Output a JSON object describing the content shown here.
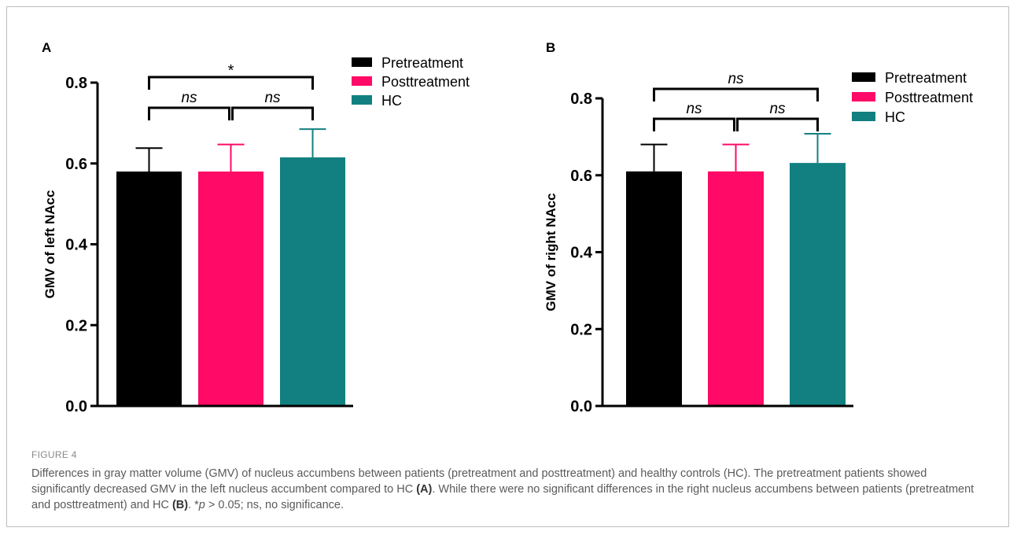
{
  "figure": {
    "label": "FIGURE 4",
    "caption": {
      "part1": "Differences in gray matter volume (GMV) of nucleus accumbens between patients (pretreatment and posttreatment) and healthy controls (HC). The pretreatment patients showed significantly decreased GMV in the left nucleus accumbent compared to HC ",
      "ref_a": "(A)",
      "part2": ". While there were no significant differences in the right nucleus accumbens between patients (pretreatment and posttreatment) and HC ",
      "ref_b": "(B)",
      "part3": ". *",
      "p_symbol": "p",
      "part4": " > 0.05; ns, no significance."
    }
  },
  "colors": {
    "Pretreatment": "#000000",
    "Posttreatment": "#ff0a66",
    "HC": "#128080"
  },
  "chart_data": [
    {
      "panel": "A",
      "type": "bar",
      "categories": [
        "Pretreatment",
        "Posttreatment",
        "HC"
      ],
      "values": [
        0.58,
        0.58,
        0.615
      ],
      "errors": [
        0.058,
        0.067,
        0.07
      ],
      "ylabel": "GMV of left NAcc",
      "ylim": [
        0,
        0.8
      ],
      "yticks": [
        0.0,
        0.2,
        0.4,
        0.6,
        0.8
      ],
      "ytick_labels": [
        "0.0",
        "0.2",
        "0.4",
        "0.6",
        "0.8"
      ],
      "legend": [
        "Pretreatment",
        "Posttreatment",
        "HC"
      ],
      "legend_position": "top-right",
      "significance": [
        {
          "from": 0,
          "to": 1,
          "label": "ns"
        },
        {
          "from": 1,
          "to": 2,
          "label": "ns"
        },
        {
          "from": 0,
          "to": 2,
          "label": "*"
        }
      ]
    },
    {
      "panel": "B",
      "type": "bar",
      "categories": [
        "Pretreatment",
        "Posttreatment",
        "HC"
      ],
      "values": [
        0.61,
        0.61,
        0.632
      ],
      "errors": [
        0.07,
        0.07,
        0.076
      ],
      "ylabel": "GMV of right NAcc",
      "ylim": [
        0,
        0.8
      ],
      "yticks": [
        0.0,
        0.2,
        0.4,
        0.6,
        0.8
      ],
      "ytick_labels": [
        "0.0",
        "0.2",
        "0.4",
        "0.6",
        "0.8"
      ],
      "legend": [
        "Pretreatment",
        "Posttreatment",
        "HC"
      ],
      "legend_position": "top-right",
      "significance": [
        {
          "from": 0,
          "to": 1,
          "label": "ns"
        },
        {
          "from": 1,
          "to": 2,
          "label": "ns"
        },
        {
          "from": 0,
          "to": 2,
          "label": "ns"
        }
      ]
    }
  ]
}
